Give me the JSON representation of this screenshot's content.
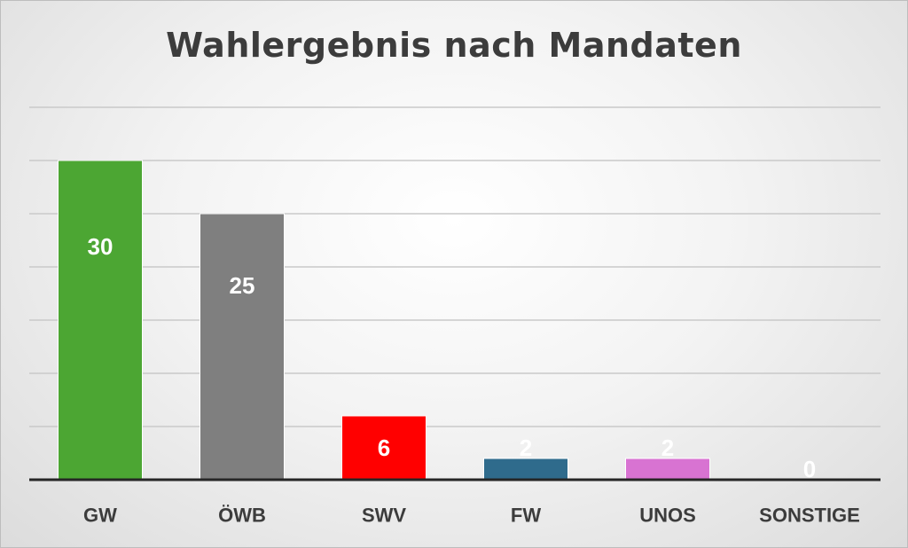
{
  "chart_data": {
    "type": "bar",
    "title": "Wahlergebnis nach Mandaten",
    "categories": [
      "GW",
      "ÖWB",
      "SWV",
      "FW",
      "UNOS",
      "SONSTIGE"
    ],
    "values": [
      30,
      25,
      6,
      2,
      2,
      0
    ],
    "data_labels": [
      "30",
      "25",
      "6",
      "2",
      "2",
      "0"
    ],
    "colors": [
      "#4ca633",
      "#7f7f7f",
      "#ff0000",
      "#2f6b8c",
      "#d873d2",
      "#bfbfbf"
    ],
    "xlabel": "",
    "ylabel": "",
    "ylim": [
      0,
      35
    ],
    "ytick_step": 5,
    "grid": true,
    "legend": "none"
  }
}
